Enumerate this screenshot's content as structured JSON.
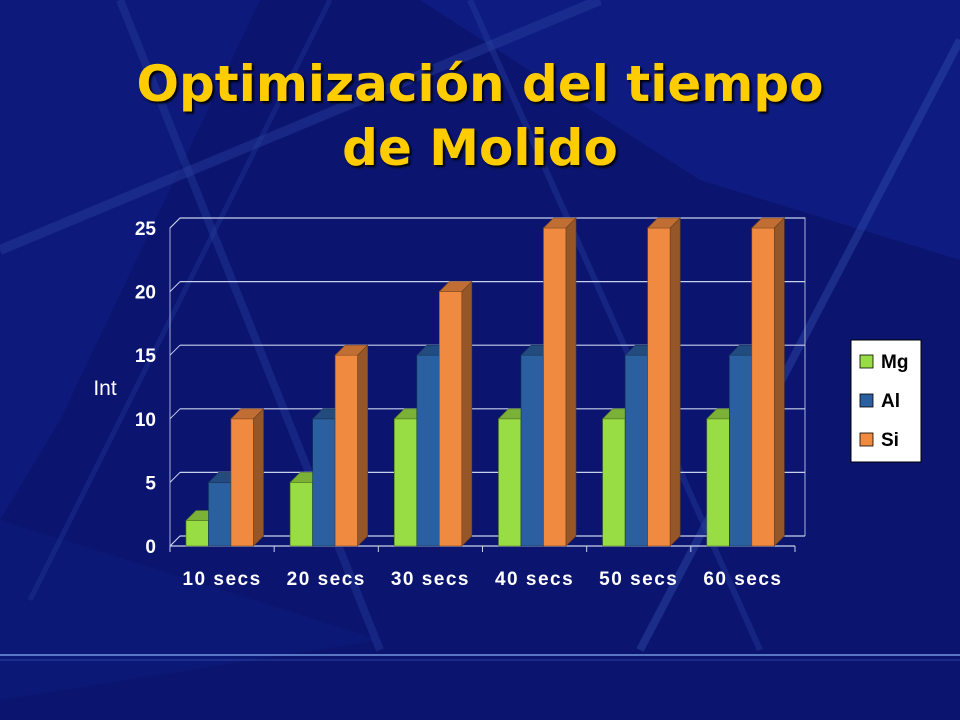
{
  "slide": {
    "title_line1": "Optimización del tiempo",
    "title_line2": "de Molido"
  },
  "colors": {
    "background": "#0b1570",
    "title": "#ffcc00",
    "Mg": "#99dd44",
    "Al": "#2a5fa0",
    "Si": "#f08a40"
  },
  "chart_data": {
    "type": "bar",
    "style": "3d-clustered-column",
    "categories": [
      "10 secs",
      "20 secs",
      "30 secs",
      "40 secs",
      "50 secs",
      "60 secs"
    ],
    "series": [
      {
        "name": "Mg",
        "values": [
          2,
          5,
          10,
          10,
          10,
          10
        ]
      },
      {
        "name": "Al",
        "values": [
          5,
          10,
          15,
          15,
          15,
          15
        ]
      },
      {
        "name": "Si",
        "values": [
          10,
          15,
          20,
          25,
          25,
          25
        ]
      }
    ],
    "ylabel": "Int",
    "xlabel": "",
    "ylim": [
      0,
      25
    ],
    "yticks": [
      "0",
      "5",
      "10",
      "15",
      "20",
      "25"
    ],
    "grid": true,
    "legend_position": "right"
  }
}
